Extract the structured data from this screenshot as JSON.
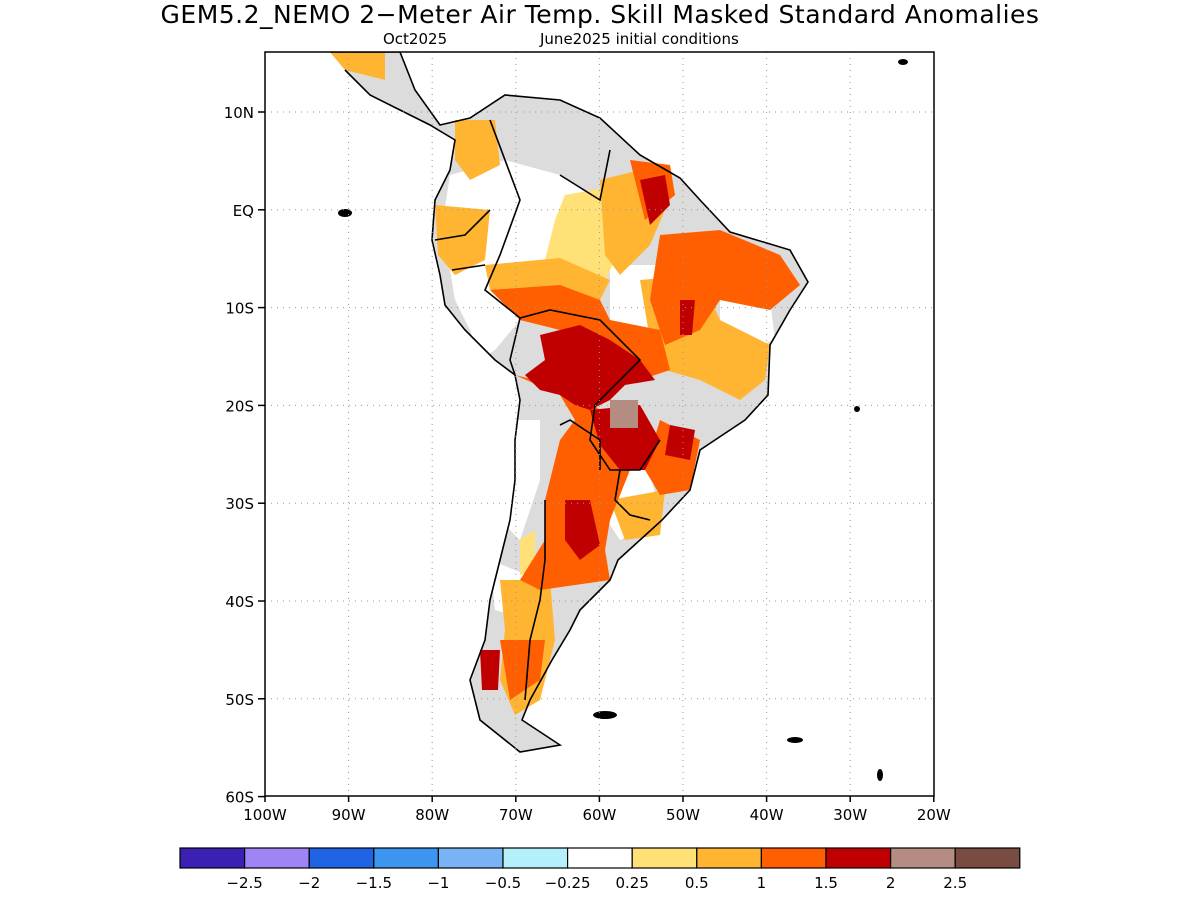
{
  "title": "GEM5.2_NEMO 2−Meter Air Temp. Skill Masked Standard Anomalies",
  "subtitle_left": "Oct2025",
  "subtitle_right": "June2025 initial conditions",
  "lat_labels": [
    "10N",
    "EQ",
    "10S",
    "20S",
    "30S",
    "40S",
    "50S",
    "60S"
  ],
  "lon_labels": [
    "100W",
    "90W",
    "80W",
    "70W",
    "60W",
    "50W",
    "40W",
    "30W",
    "20W"
  ],
  "colorbar": {
    "colors": [
      "#3c20b4",
      "#9f84f5",
      "#1f64e4",
      "#3c96f0",
      "#78b4f5",
      "#b4f0fa",
      "#ffffff",
      "#ffe178",
      "#ffb432",
      "#ff5f00",
      "#c00000",
      "#b48c82",
      "#784c40"
    ],
    "labels": [
      "−2.5",
      "−2",
      "−1.5",
      "−1",
      "−0.5",
      "−0.25",
      "0.25",
      "0.5",
      "1",
      "1.5",
      "2",
      "2.5"
    ]
  },
  "map_colors": {
    "land": "#ffffff",
    "masked": "#dcdcdc",
    "coast": "#000000",
    "grid": "#999999"
  }
}
